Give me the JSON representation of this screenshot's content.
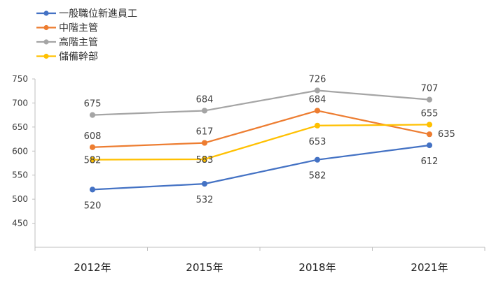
{
  "chart_data": {
    "type": "line",
    "categories": [
      "2012年",
      "2015年",
      "2018年",
      "2021年"
    ],
    "ylim": [
      400,
      750
    ],
    "yticks": [
      450,
      500,
      550,
      600,
      650,
      700,
      750
    ],
    "grid": false,
    "legend_position": "top-left",
    "series": [
      {
        "name": "一般職位新進員工",
        "color": "#4472C4",
        "values": [
          520,
          532,
          582,
          612
        ]
      },
      {
        "name": "中階主管",
        "color": "#ED7D31",
        "values": [
          608,
          617,
          684,
          635
        ]
      },
      {
        "name": "高階主管",
        "color": "#A5A5A5",
        "values": [
          675,
          684,
          726,
          707
        ]
      },
      {
        "name": "儲備幹部",
        "color": "#FFC000",
        "values": [
          582,
          583,
          653,
          655
        ]
      }
    ]
  }
}
